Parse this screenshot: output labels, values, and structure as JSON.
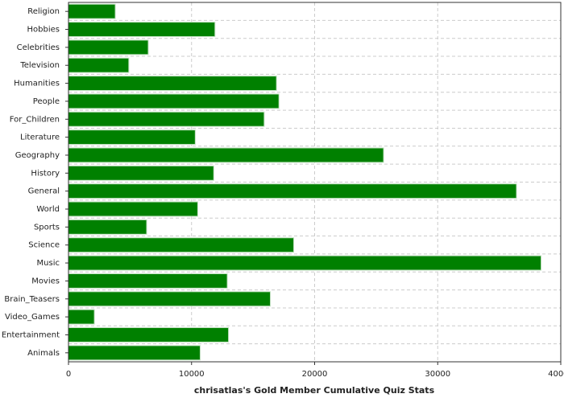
{
  "chart_data": {
    "type": "hbar",
    "title": "chrisatlas's Gold Member Cumulative Quiz Stats",
    "categories": [
      "Religion",
      "Hobbies",
      "Celebrities",
      "Television",
      "Humanities",
      "People",
      "For_Children",
      "Literature",
      "Geography",
      "History",
      "General",
      "World",
      "Sports",
      "Science",
      "Music",
      "Movies",
      "Brain_Teasers",
      "Video_Games",
      "Entertainment",
      "Animals"
    ],
    "values": [
      3800,
      11900,
      6480,
      4900,
      16900,
      17100,
      15900,
      10300,
      25600,
      11800,
      36400,
      10500,
      6350,
      18300,
      38400,
      12900,
      16400,
      2100,
      13000,
      10700
    ],
    "color": "#008000",
    "xlim": [
      0,
      40000
    ],
    "xticks": [
      0,
      10000,
      20000,
      30000,
      40000
    ],
    "grid": true
  }
}
